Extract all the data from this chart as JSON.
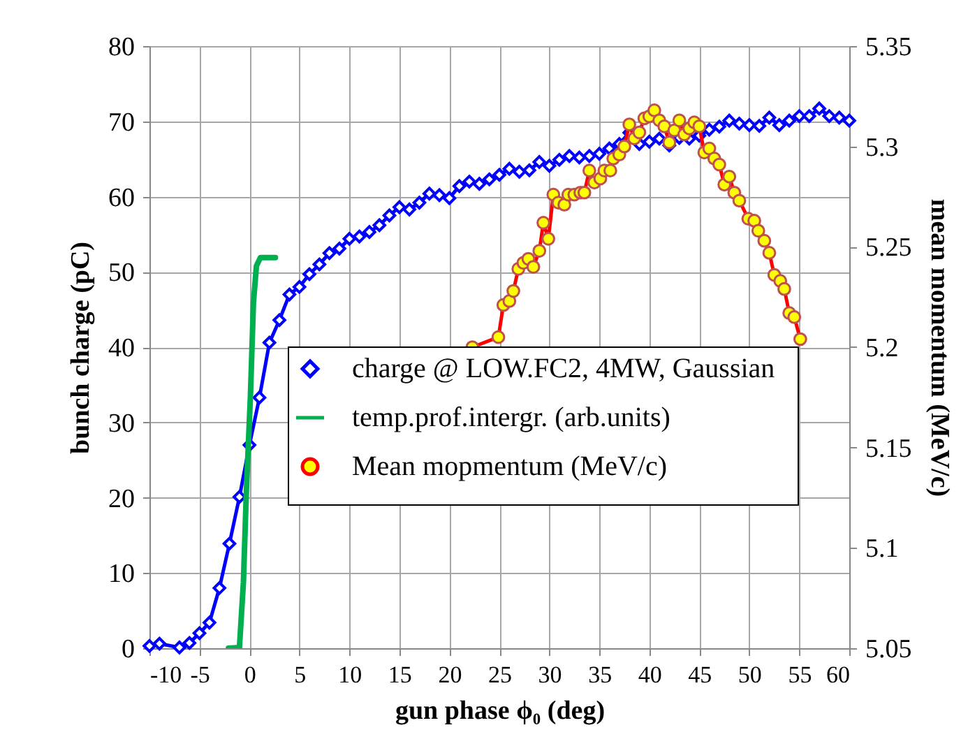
{
  "chart_data": {
    "type": "line",
    "xlabel": "gun phase ϕ₀ (deg)",
    "ylabel": "bunch charge (pC)",
    "y2label": "mean momentum (MeV/c)",
    "xlim": [
      -10,
      60
    ],
    "xticks": [
      -10,
      -5,
      0,
      5,
      10,
      15,
      20,
      25,
      30,
      35,
      40,
      45,
      50,
      55,
      60
    ],
    "ylim": [
      0,
      80
    ],
    "yticks": [
      0,
      10,
      20,
      30,
      40,
      50,
      60,
      70,
      80
    ],
    "y2lim": [
      5.05,
      5.35
    ],
    "y2ticks": [
      5.05,
      5.1,
      5.15,
      5.2,
      5.25,
      5.3,
      5.35
    ],
    "grid": true,
    "legend": "bottom",
    "series": [
      {
        "name": "charge @ LOW.FC2, 4MW, Gaussian",
        "color": "#0000ff",
        "marker": "diamond",
        "x": [
          -10,
          -9,
          -7,
          -6,
          -5,
          -4,
          -3,
          -2,
          -1,
          0,
          1,
          2,
          3,
          4,
          5,
          6,
          7,
          8,
          9,
          10,
          11,
          12,
          13,
          14,
          15,
          16,
          17,
          18,
          19,
          20,
          21,
          22,
          23,
          24,
          25,
          26,
          27,
          28,
          29,
          30,
          31,
          32,
          33,
          34,
          35,
          36,
          37,
          38,
          39,
          40,
          41,
          42,
          43,
          44,
          45,
          46,
          47,
          48,
          49,
          50,
          51,
          52,
          53,
          54,
          55,
          56,
          57,
          58,
          59,
          60
        ],
        "values": [
          0.3,
          0.6,
          0.1,
          0.7,
          2.0,
          3.4,
          8.0,
          13.9,
          20.1,
          27.0,
          33.3,
          40.6,
          43.6,
          47.0,
          48.0,
          49.7,
          51.0,
          52.5,
          53.1,
          54.4,
          54.7,
          55.3,
          56.2,
          57.5,
          58.6,
          58.3,
          59.2,
          60.4,
          60.2,
          59.8,
          61.4,
          62.0,
          61.7,
          62.3,
          62.9,
          63.7,
          63.3,
          63.5,
          64.6,
          64.1,
          64.9,
          65.4,
          65.2,
          65.4,
          65.7,
          66.4,
          67.0,
          68.5,
          67.0,
          67.3,
          67.7,
          66.8,
          67.8,
          67.7,
          68.1,
          68.9,
          69.3,
          70.1,
          69.7,
          69.5,
          69.4,
          70.5,
          69.5,
          70.1,
          70.7,
          70.7,
          71.7,
          70.7,
          70.5,
          70.1
        ]
      },
      {
        "name": "temp.prof.intergr. (arb.units)",
        "color": "#00b050",
        "marker": "none",
        "x": [
          -2.1,
          -1.0,
          -0.6,
          -0.3,
          0.1,
          0.4,
          0.7,
          1.1,
          2.6
        ],
        "values": [
          0,
          0.1,
          8.8,
          21.1,
          33.5,
          45.9,
          50.8,
          51.9,
          51.9
        ]
      },
      {
        "name": "Mean mopmentum (MeV/c)",
        "color": "#ff0000",
        "marker": "circle",
        "axis": "y2",
        "x": [
          22.3,
          24.9,
          25.4,
          26.0,
          26.4,
          26.9,
          27.4,
          27.9,
          28.4,
          29.0,
          29.4,
          29.9,
          30.4,
          30.9,
          31.5,
          31.9,
          32.5,
          33.1,
          33.5,
          34.0,
          34.5,
          35.1,
          35.5,
          36.1,
          36.4,
          37.0,
          37.5,
          38.0,
          38.5,
          39.0,
          39.5,
          40.0,
          40.5,
          41.0,
          41.5,
          42.0,
          42.5,
          43.0,
          43.5,
          44.0,
          44.5,
          45.0,
          45.5,
          46.0,
          46.5,
          47.0,
          47.5,
          48.0,
          48.5,
          49.0,
          49.9,
          50.5,
          50.9,
          51.5,
          52.0,
          52.5,
          53.1,
          53.5,
          54.0,
          54.5,
          55.1
        ],
        "values": [
          5.2,
          5.205,
          5.221,
          5.223,
          5.228,
          5.239,
          5.242,
          5.244,
          5.24,
          5.248,
          5.262,
          5.254,
          5.276,
          5.272,
          5.271,
          5.276,
          5.276,
          5.277,
          5.277,
          5.288,
          5.282,
          5.284,
          5.288,
          5.288,
          5.294,
          5.296,
          5.3,
          5.311,
          5.304,
          5.307,
          5.314,
          5.315,
          5.318,
          5.313,
          5.31,
          5.302,
          5.308,
          5.313,
          5.306,
          5.309,
          5.312,
          5.31,
          5.297,
          5.299,
          5.294,
          5.291,
          5.281,
          5.285,
          5.277,
          5.273,
          5.264,
          5.263,
          5.258,
          5.253,
          5.247,
          5.236,
          5.233,
          5.229,
          5.217,
          5.215,
          5.204
        ]
      }
    ]
  }
}
